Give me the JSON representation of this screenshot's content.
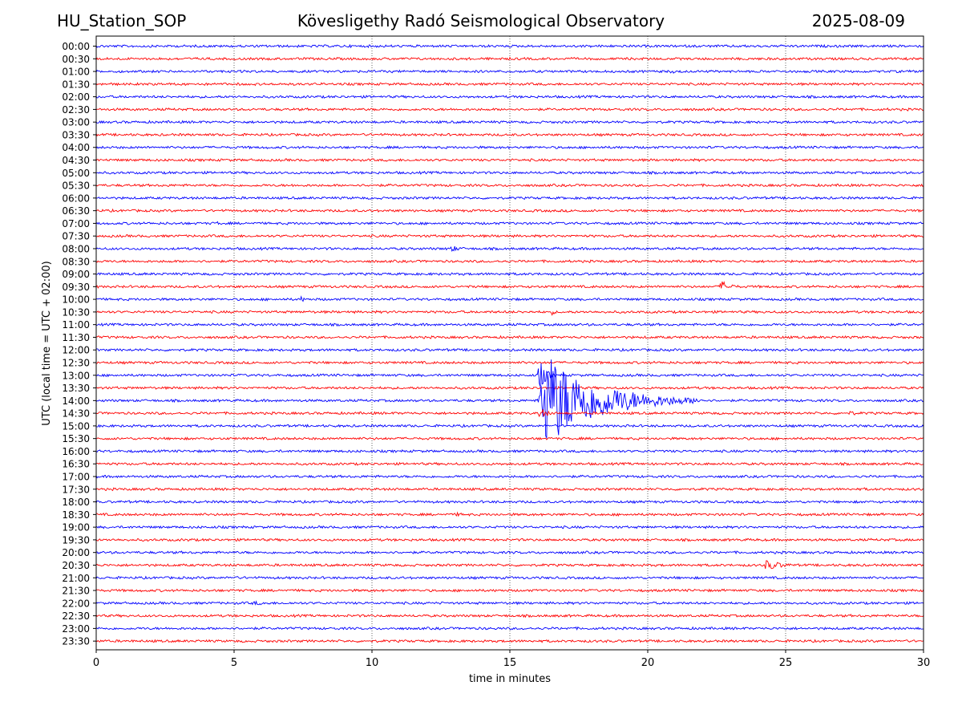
{
  "header": {
    "station": "HU_Station_SOP",
    "observatory": "Kövesligethy Radó Seismological Observatory",
    "date": "2025-08-09"
  },
  "chart_data": {
    "type": "line",
    "title": "Kövesligethy Radó Seismological Observatory",
    "xlabel": "time in minutes",
    "ylabel": "UTC (local time = UTC + 02:00)",
    "xlim": [
      0,
      30
    ],
    "xticks": [
      "0",
      "5",
      "10",
      "15",
      "20",
      "25",
      "30"
    ],
    "vertical_gridlines_at": [
      5,
      10,
      15,
      20,
      25
    ],
    "grid": "dotted vertical lines",
    "trace_colors": [
      "#0000ff",
      "#ff0000"
    ],
    "rows": [
      "00:00",
      "00:30",
      "01:00",
      "01:30",
      "02:00",
      "02:30",
      "03:00",
      "03:30",
      "04:00",
      "04:30",
      "05:00",
      "05:30",
      "06:00",
      "06:30",
      "07:00",
      "07:30",
      "08:00",
      "08:30",
      "09:00",
      "09:30",
      "10:00",
      "10:30",
      "11:00",
      "11:30",
      "12:00",
      "12:30",
      "13:00",
      "13:30",
      "14:00",
      "14:30",
      "15:00",
      "15:30",
      "16:00",
      "16:30",
      "17:00",
      "17:30",
      "18:00",
      "18:30",
      "19:00",
      "19:30",
      "20:00",
      "20:30",
      "21:00",
      "21:30",
      "22:00",
      "22:30",
      "23:00",
      "23:30"
    ],
    "events": [
      {
        "row": "00:00",
        "start": 1.2,
        "duration": 0.8,
        "amp": 2
      },
      {
        "row": "01:00",
        "start": 20.8,
        "duration": 1.0,
        "amp": 3
      },
      {
        "row": "03:30",
        "start": 18.0,
        "duration": 0.5,
        "amp": 2
      },
      {
        "row": "04:30",
        "start": 5.9,
        "duration": 0.4,
        "amp": 2.5
      },
      {
        "row": "05:00",
        "start": 20.5,
        "duration": 1.5,
        "amp": 2
      },
      {
        "row": "05:30",
        "start": 7.1,
        "duration": 0.3,
        "amp": 3
      },
      {
        "row": "07:00",
        "start": 4.3,
        "duration": 0.8,
        "amp": 3
      },
      {
        "row": "07:30",
        "start": 12.0,
        "duration": 1.0,
        "amp": 2
      },
      {
        "row": "08:00",
        "start": 12.8,
        "duration": 1.5,
        "amp": 4
      },
      {
        "row": "09:30",
        "start": 22.6,
        "duration": 1.2,
        "amp": 8
      },
      {
        "row": "10:00",
        "start": 7.4,
        "duration": 0.4,
        "amp": 5
      },
      {
        "row": "10:30",
        "start": 16.5,
        "duration": 0.5,
        "amp": 4
      },
      {
        "row": "13:00",
        "start": 16.0,
        "duration": 0.8,
        "amp": 22
      },
      {
        "row": "14:00",
        "start": 16.0,
        "duration": 6.0,
        "amp": 60
      },
      {
        "row": "14:30",
        "start": 16.0,
        "duration": 1.0,
        "amp": 8
      },
      {
        "row": "14:30",
        "start": 27.3,
        "duration": 0.8,
        "amp": 4
      },
      {
        "row": "17:30",
        "start": 27.8,
        "duration": 0.6,
        "amp": 2.5
      },
      {
        "row": "18:30",
        "start": 13.0,
        "duration": 1.5,
        "amp": 2.5
      },
      {
        "row": "19:00",
        "start": 17.5,
        "duration": 0.6,
        "amp": 2
      },
      {
        "row": "19:30",
        "start": 3.3,
        "duration": 0.4,
        "amp": 3
      },
      {
        "row": "20:30",
        "start": 24.2,
        "duration": 2.0,
        "amp": 7
      },
      {
        "row": "20:30",
        "start": 27.5,
        "duration": 1.0,
        "amp": 2
      },
      {
        "row": "21:00",
        "start": 5.0,
        "duration": 0.4,
        "amp": 3
      },
      {
        "row": "21:00",
        "start": 26.0,
        "duration": 2.0,
        "amp": 2
      },
      {
        "row": "22:00",
        "start": 5.5,
        "duration": 4.5,
        "amp": 2.5
      }
    ]
  }
}
